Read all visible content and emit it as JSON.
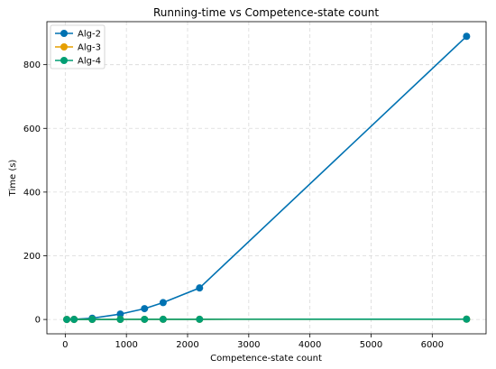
{
  "chart_data": {
    "type": "line",
    "title": "Running-time vs Competence-state count",
    "xlabel": "Competence-state count",
    "ylabel": "Time (s)",
    "xlim": [
      -300,
      6880
    ],
    "ylim": [
      -45,
      935
    ],
    "xticks": [
      0,
      1000,
      2000,
      3000,
      4000,
      5000,
      6000
    ],
    "yticks": [
      0,
      200,
      400,
      600,
      800
    ],
    "grid": true,
    "legend_position": "top-left",
    "x": [
      25,
      144,
      441,
      900,
      1296,
      1600,
      2196,
      6561
    ],
    "series": [
      {
        "name": "Alg-2",
        "color": "#0072B2",
        "values": [
          0.1,
          0.5,
          4,
          17,
          34,
          53,
          99,
          889
        ]
      },
      {
        "name": "Alg-3",
        "color": "#E69F00",
        "values": [
          0.05,
          0.1,
          0.2,
          0.3,
          0.4,
          0.5,
          0.6,
          1.0
        ]
      },
      {
        "name": "Alg-4",
        "color": "#009E73",
        "values": [
          0.05,
          0.1,
          0.2,
          0.3,
          0.4,
          0.5,
          0.6,
          1.0
        ]
      }
    ]
  }
}
